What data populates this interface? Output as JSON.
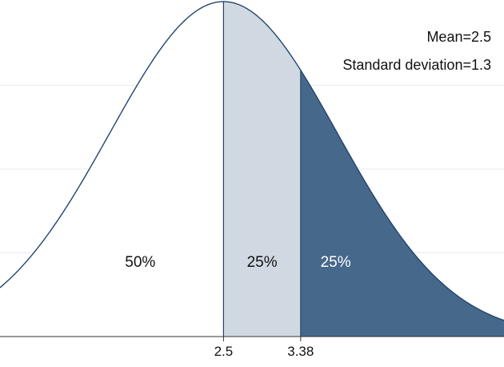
{
  "chart_data": {
    "type": "area",
    "distribution": "normal",
    "mean": 2.5,
    "sd": 1.3,
    "xlim": [
      -0.05,
      5.7
    ],
    "grid": true,
    "annotations": [
      "Mean=2.5",
      "Standard deviation=1.3"
    ],
    "x_ticks": [
      {
        "value": 2.5,
        "label": "2.5"
      },
      {
        "value": 3.38,
        "label": "3.38"
      }
    ],
    "regions": [
      {
        "from": -0.05,
        "to": 2.5,
        "label": "50%",
        "fill": "#ffffff"
      },
      {
        "from": 2.5,
        "to": 3.38,
        "label": "25%",
        "fill": "#d0d9e2"
      },
      {
        "from": 3.38,
        "to": 5.7,
        "label": "25%",
        "fill": "#46688a"
      }
    ],
    "line_color": "#23456b",
    "grid_color": "#e8ebef"
  }
}
